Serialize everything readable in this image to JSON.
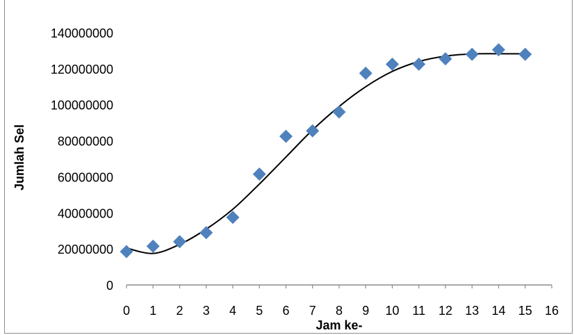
{
  "chart_data": {
    "type": "scatter",
    "title": "",
    "xlabel": "Jam ke-",
    "ylabel": "Jumlah Sel",
    "xlim": [
      0,
      16
    ],
    "ylim": [
      0,
      140000000
    ],
    "x_ticks": [
      "0",
      "1",
      "2",
      "3",
      "4",
      "5",
      "6",
      "7",
      "8",
      "9",
      "10",
      "11",
      "12",
      "13",
      "14",
      "15",
      "16"
    ],
    "y_ticks": [
      "0",
      "20000000",
      "40000000",
      "60000000",
      "80000000",
      "100000000",
      "120000000",
      "140000000"
    ],
    "grid": false,
    "legend": "none",
    "marker": "diamond",
    "marker_color": "#4f81bd",
    "trendline": {
      "type": "polynomial",
      "color": "#000000",
      "points": [
        [
          0,
          20500000
        ],
        [
          1,
          17500000
        ],
        [
          2,
          22500000
        ],
        [
          3,
          31000000
        ],
        [
          4,
          42000000
        ],
        [
          5,
          56000000
        ],
        [
          6,
          71000000
        ],
        [
          7,
          86000000
        ],
        [
          8,
          99000000
        ],
        [
          9,
          110000000
        ],
        [
          10,
          118500000
        ],
        [
          11,
          124000000
        ],
        [
          12,
          127000000
        ],
        [
          13,
          128200000
        ],
        [
          14,
          128300000
        ],
        [
          15,
          128300000
        ]
      ]
    },
    "series": [
      {
        "x": [
          0,
          1,
          2,
          3,
          4,
          5,
          6,
          7,
          8,
          9,
          10,
          11,
          12,
          13,
          14,
          15
        ],
        "values": [
          18500000,
          21500000,
          24000000,
          29000000,
          37500000,
          61500000,
          82500000,
          85500000,
          96000000,
          117500000,
          122500000,
          122500000,
          125500000,
          128000000,
          130500000,
          128000000
        ]
      }
    ]
  }
}
